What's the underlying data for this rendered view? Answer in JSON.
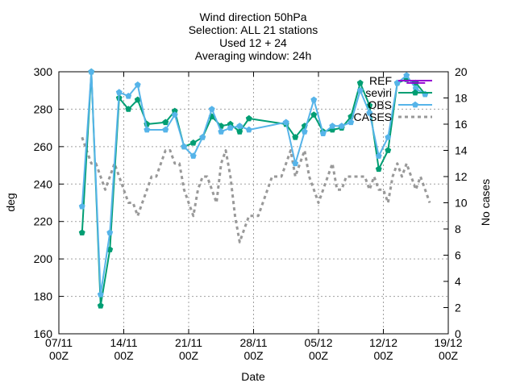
{
  "chart_data": {
    "type": "line",
    "title_lines": [
      "Wind direction 50hPa",
      "Selection: ALL     21 stations",
      "Used 12 + 24",
      "Averaging window: 24h"
    ],
    "xlabel": "Date",
    "ylabel": "deg",
    "y2label": "No cases",
    "x_ticks": [
      {
        "line1": "07/11",
        "line2": "00Z"
      },
      {
        "line1": "14/11",
        "line2": "00Z"
      },
      {
        "line1": "21/11",
        "line2": "00Z"
      },
      {
        "line1": "28/11",
        "line2": "00Z"
      },
      {
        "line1": "05/12",
        "line2": "00Z"
      },
      {
        "line1": "12/12",
        "line2": "00Z"
      },
      {
        "line1": "19/12",
        "line2": "00Z"
      }
    ],
    "x_range_days": [
      0,
      42
    ],
    "ylim": [
      160,
      300
    ],
    "y_ticks": [
      160,
      180,
      200,
      220,
      240,
      260,
      280,
      300
    ],
    "y2lim": [
      0,
      20
    ],
    "y2_ticks": [
      0,
      2,
      4,
      6,
      8,
      10,
      12,
      14,
      16,
      18,
      20
    ],
    "grid": true,
    "legend_position": "top-right",
    "series": [
      {
        "name": "REF",
        "color": "#9400d3",
        "style": "line",
        "x": [
          37.5,
          38.5,
          39.5
        ],
        "y": [
          294,
          294,
          294
        ]
      },
      {
        "name": "seviri",
        "color": "#009e73",
        "style": "line-point",
        "x": [
          2.5,
          3.5,
          4.5,
          5.5,
          6.5,
          7.5,
          8.5,
          9.5,
          11.5,
          12.5,
          13.5,
          14.5,
          15.5,
          16.5,
          17.5,
          18.5,
          19.5,
          20.5,
          24.5,
          25.5,
          26.5,
          27.5,
          28.5,
          29.5,
          30.5,
          31.5,
          32.5,
          33.5,
          34.5,
          35.5,
          36.5,
          37.5,
          38.5,
          39.5
        ],
        "y": [
          214,
          300,
          175,
          205,
          286,
          280,
          285,
          272,
          273,
          279,
          260,
          262,
          265,
          276,
          271,
          272,
          268,
          275,
          272,
          265,
          271,
          277,
          268,
          269,
          270,
          276,
          294,
          282,
          248,
          258,
          294,
          296,
          294,
          288
        ]
      },
      {
        "name": "OBS",
        "color": "#56b4e9",
        "style": "line-point",
        "x": [
          2.5,
          3.5,
          4.5,
          5.5,
          6.5,
          7.5,
          8.5,
          9.5,
          11.5,
          12.5,
          13.5,
          14.5,
          15.5,
          16.5,
          17.5,
          18.5,
          19.5,
          20.5,
          24.5,
          25.5,
          26.5,
          27.5,
          28.5,
          29.5,
          30.5,
          31.5,
          32.5,
          33.5,
          34.5,
          35.5,
          36.5,
          37.5,
          38.5,
          39.5
        ],
        "y": [
          228,
          300,
          181,
          214,
          289,
          287,
          293,
          269,
          269,
          277,
          260,
          255,
          265,
          280,
          268,
          270,
          271,
          269,
          273,
          251,
          268,
          285,
          267,
          271,
          271,
          273,
          290,
          278,
          255,
          265,
          294,
          298,
          291,
          288
        ]
      },
      {
        "name": "CASES",
        "color": "#999999",
        "style": "dashed",
        "axis": "y2",
        "x": [
          2.5,
          3.0,
          3.5,
          4.0,
          4.5,
          5.0,
          5.5,
          6.0,
          6.5,
          7.0,
          7.5,
          8.0,
          8.5,
          9.0,
          9.5,
          10.0,
          10.5,
          11.0,
          11.5,
          12.0,
          12.5,
          13.0,
          13.5,
          14.0,
          14.5,
          15.0,
          15.5,
          16.0,
          16.5,
          17.0,
          17.5,
          18.0,
          18.5,
          19.0,
          19.5,
          20.0,
          20.5,
          21.0,
          21.5,
          22.0,
          22.5,
          23.0,
          23.5,
          24.0,
          24.5,
          25.0,
          25.5,
          26.0,
          26.5,
          27.0,
          27.5,
          28.0,
          28.5,
          29.0,
          29.5,
          30.0,
          30.5,
          31.0,
          31.5,
          32.0,
          32.5,
          33.0,
          33.5,
          34.0,
          34.5,
          35.0,
          35.5,
          36.0,
          36.5,
          37.0,
          37.5,
          38.0,
          38.5,
          39.0,
          39.5,
          40.0
        ],
        "y": [
          15,
          14,
          13,
          13,
          12,
          11,
          12,
          13,
          12,
          11,
          10,
          10,
          9,
          10,
          11,
          12,
          12,
          13,
          14,
          14,
          13,
          13,
          11,
          10,
          9,
          11,
          12,
          12,
          11,
          10,
          13,
          14,
          12,
          9,
          7,
          8,
          9,
          9,
          9,
          10,
          11,
          12,
          12,
          12,
          13,
          14,
          12,
          13,
          14,
          12,
          11,
          10,
          11,
          12,
          13,
          11,
          11,
          12,
          12,
          12,
          12,
          12,
          11,
          12,
          11,
          11,
          10,
          12,
          13,
          12,
          13,
          12,
          11,
          12,
          11,
          10
        ]
      }
    ]
  }
}
